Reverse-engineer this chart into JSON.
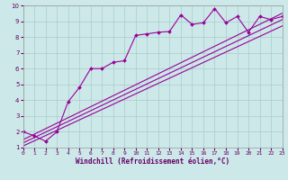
{
  "xlabel": "Windchill (Refroidissement éolien,°C)",
  "xlim": [
    0,
    23
  ],
  "ylim": [
    1,
    10
  ],
  "xticks": [
    0,
    1,
    2,
    3,
    4,
    5,
    6,
    7,
    8,
    9,
    10,
    11,
    12,
    13,
    14,
    15,
    16,
    17,
    18,
    19,
    20,
    21,
    22,
    23
  ],
  "yticks": [
    1,
    2,
    3,
    4,
    5,
    6,
    7,
    8,
    9,
    10
  ],
  "bg_color": "#cce8e8",
  "line_color": "#990099",
  "grid_color": "#aacccc",
  "series": [
    {
      "x": [
        0,
        1,
        2,
        3,
        4,
        5,
        6,
        7,
        8,
        9,
        10,
        11,
        12,
        13,
        14,
        15,
        16,
        17,
        18,
        19,
        20,
        21,
        22,
        23
      ],
      "y": [
        2.0,
        1.75,
        1.4,
        2.0,
        3.9,
        4.8,
        6.0,
        6.0,
        6.4,
        6.5,
        8.1,
        8.2,
        8.3,
        8.35,
        9.4,
        8.8,
        8.9,
        9.8,
        8.9,
        9.3,
        8.3,
        9.3,
        9.1,
        9.3
      ],
      "has_markers": true
    },
    {
      "x": [
        0,
        23
      ],
      "y": [
        1.5,
        9.5
      ],
      "has_markers": false
    },
    {
      "x": [
        0,
        23
      ],
      "y": [
        1.3,
        9.1
      ],
      "has_markers": false
    },
    {
      "x": [
        0,
        23
      ],
      "y": [
        1.1,
        8.7
      ],
      "has_markers": false
    }
  ],
  "font_color": "#660066",
  "xlabel_fontsize": 5.5,
  "tick_fontsize": 5.0,
  "linewidth": 0.8,
  "markersize": 2.0
}
